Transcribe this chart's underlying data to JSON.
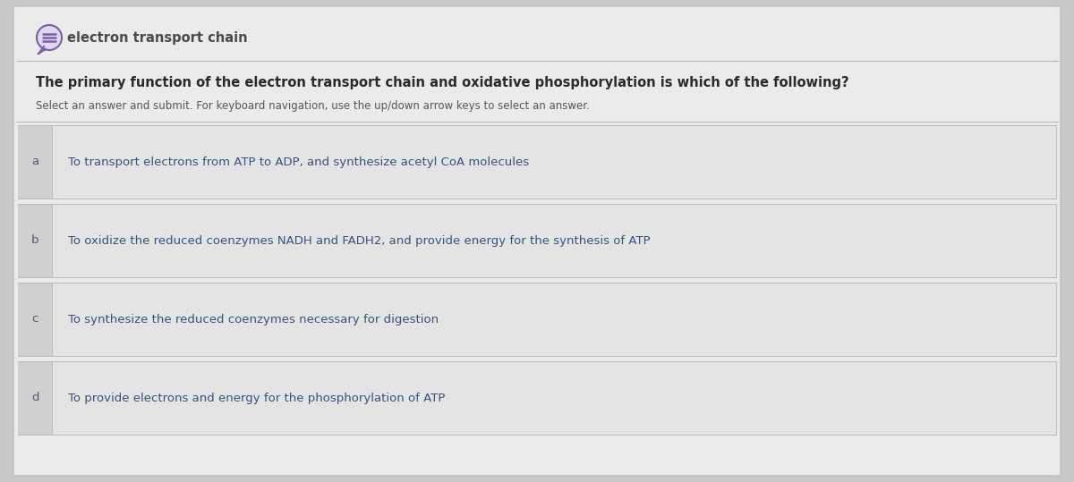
{
  "background_color": "#d8d8d8",
  "outer_bg": "#c8c8c8",
  "card_color": "#ebebeb",
  "card_border_color": "#b8b8b8",
  "icon_color": "#7b5ea7",
  "icon_bg": "#e0d8f0",
  "topic_text": "electron transport chain",
  "topic_color": "#4a4a4a",
  "topic_fontsize": 10.5,
  "question_text": "The primary function of the electron transport chain and oxidative phosphorylation is which of the following?",
  "question_color": "#2a2a2a",
  "question_fontsize": 10.5,
  "instruction_text": "Select an answer and submit. For keyboard navigation, use the up/down arrow keys to select an answer.",
  "instruction_color": "#555555",
  "instruction_fontsize": 8.5,
  "answer_bg": "#e4e4e4",
  "answer_left_strip_color": "#d0d0d0",
  "answer_border_color": "#b8b8b8",
  "answer_label_color": "#555577",
  "answer_text_color": "#3a5080",
  "answer_fontsize": 9.5,
  "answers": [
    {
      "label": "a",
      "text": "To transport electrons from ATP to ADP, and synthesize acetyl CoA molecules"
    },
    {
      "label": "b",
      "text": "To oxidize the reduced coenzymes NADH and FADH2, and provide energy for the synthesis of ATP"
    },
    {
      "label": "c",
      "text": "To synthesize the reduced coenzymes necessary for digestion"
    },
    {
      "label": "d",
      "text": "To provide electrons and energy for the phosphorylation of ATP"
    }
  ],
  "figw": 12.0,
  "figh": 5.39,
  "dpi": 100
}
